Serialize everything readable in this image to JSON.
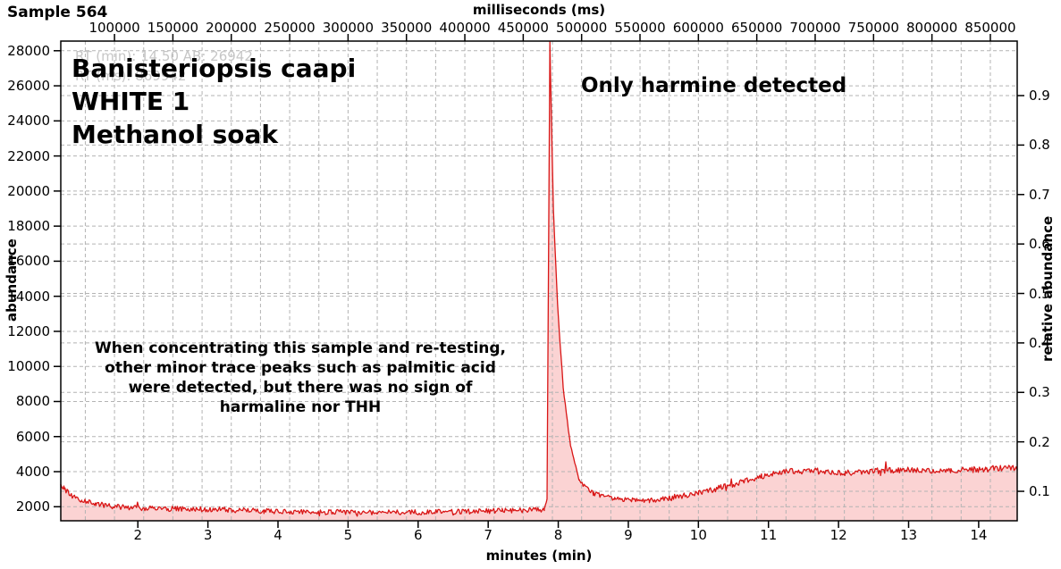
{
  "header": {
    "sample_label": "Sample 564"
  },
  "axes": {
    "top": {
      "title": "milliseconds (ms)",
      "ticks": [
        100000,
        150000,
        200000,
        250000,
        300000,
        350000,
        400000,
        450000,
        500000,
        550000,
        600000,
        650000,
        700000,
        750000,
        800000,
        850000
      ]
    },
    "bottom": {
      "title": "minutes (min)",
      "ticks": [
        2,
        3,
        4,
        5,
        6,
        7,
        8,
        9,
        10,
        11,
        12,
        13,
        14
      ]
    },
    "left": {
      "title": "abundance",
      "ticks": [
        2000,
        4000,
        6000,
        8000,
        10000,
        12000,
        14000,
        16000,
        18000,
        20000,
        22000,
        24000,
        26000,
        28000
      ]
    },
    "right": {
      "title": "relative abundance",
      "ticks": [
        "0.1",
        "0.2",
        "0.3",
        "0.4",
        "0.5",
        "0.6",
        "0.7",
        "0.8",
        "0.9"
      ]
    }
  },
  "annotations": {
    "species": {
      "line1": "Banisteriopsis caapi",
      "line2": "WHITE 1",
      "line3": "Methanol soak"
    },
    "harmine": "Only harmine detected",
    "note": "When concentrating this sample and re-testing,\nother minor trace peaks such as palmitic acid\nwere detected, but there was no sign of\nharmaline nor THH",
    "watermark": {
      "line1": "RT (min): 14.50 AB: 26942",
      "line2": "RT (ms): 869942"
    }
  },
  "chart_data": {
    "type": "line",
    "title": "Sample 564",
    "series_name": "chromatogram trace",
    "xlabel_bottom": "minutes (min)",
    "xlabel_top": "milliseconds (ms)",
    "ylabel_left": "abundance",
    "ylabel_right": "relative abundance",
    "x_range_minutes": [
      0.9,
      14.55
    ],
    "y_left_range": [
      1200,
      28550
    ],
    "y_right_range": [
      0.04,
      1.01
    ],
    "grid": {
      "vertical_every_ms": 25000,
      "horizontal_left_every": 2000,
      "horizontal_right_every": 0.1,
      "style": "dashed"
    },
    "peaks": [
      {
        "name": "harmine",
        "rt_min": 7.88,
        "apex_abundance": 28500,
        "clipped_at_top": true
      }
    ],
    "minor_spike": {
      "rt_min": 12.68,
      "abundance": 5400,
      "half_width_min": 0.025
    },
    "trace_anchors": [
      [
        0.9,
        3350
      ],
      [
        0.95,
        3000
      ],
      [
        1.05,
        2650
      ],
      [
        1.2,
        2350
      ],
      [
        1.4,
        2150
      ],
      [
        1.7,
        2000
      ],
      [
        2.2,
        1900
      ],
      [
        3.0,
        1850
      ],
      [
        3.8,
        1750
      ],
      [
        4.5,
        1700
      ],
      [
        5.5,
        1680
      ],
      [
        6.5,
        1700
      ],
      [
        7.2,
        1780
      ],
      [
        7.8,
        1850
      ],
      [
        7.84,
        2400
      ],
      [
        7.88,
        28500
      ],
      [
        7.93,
        19000
      ],
      [
        7.99,
        13500
      ],
      [
        8.07,
        8800
      ],
      [
        8.17,
        5600
      ],
      [
        8.3,
        3500
      ],
      [
        8.5,
        2750
      ],
      [
        8.8,
        2450
      ],
      [
        9.3,
        2350
      ],
      [
        9.6,
        2500
      ],
      [
        10.0,
        2800
      ],
      [
        10.5,
        3250
      ],
      [
        10.9,
        3750
      ],
      [
        11.2,
        4000
      ],
      [
        11.6,
        4050
      ],
      [
        12.1,
        3950
      ],
      [
        12.6,
        4050
      ],
      [
        13.1,
        4100
      ],
      [
        13.6,
        4050
      ],
      [
        14.1,
        4150
      ],
      [
        14.55,
        4250
      ]
    ],
    "noise_segments": [
      {
        "from": 0.9,
        "to": 7.82,
        "amp": 150
      },
      {
        "from": 7.82,
        "to": 8.35,
        "amp": 70
      },
      {
        "from": 8.35,
        "to": 9.5,
        "amp": 130
      },
      {
        "from": 9.5,
        "to": 14.55,
        "amp": 175
      }
    ],
    "colors": {
      "line": "#d91616",
      "fill": "#fbd3d3",
      "grid": "#b3b3b3",
      "axis": "#000000",
      "watermark": "#c6c6c6",
      "text": "#000000"
    }
  }
}
